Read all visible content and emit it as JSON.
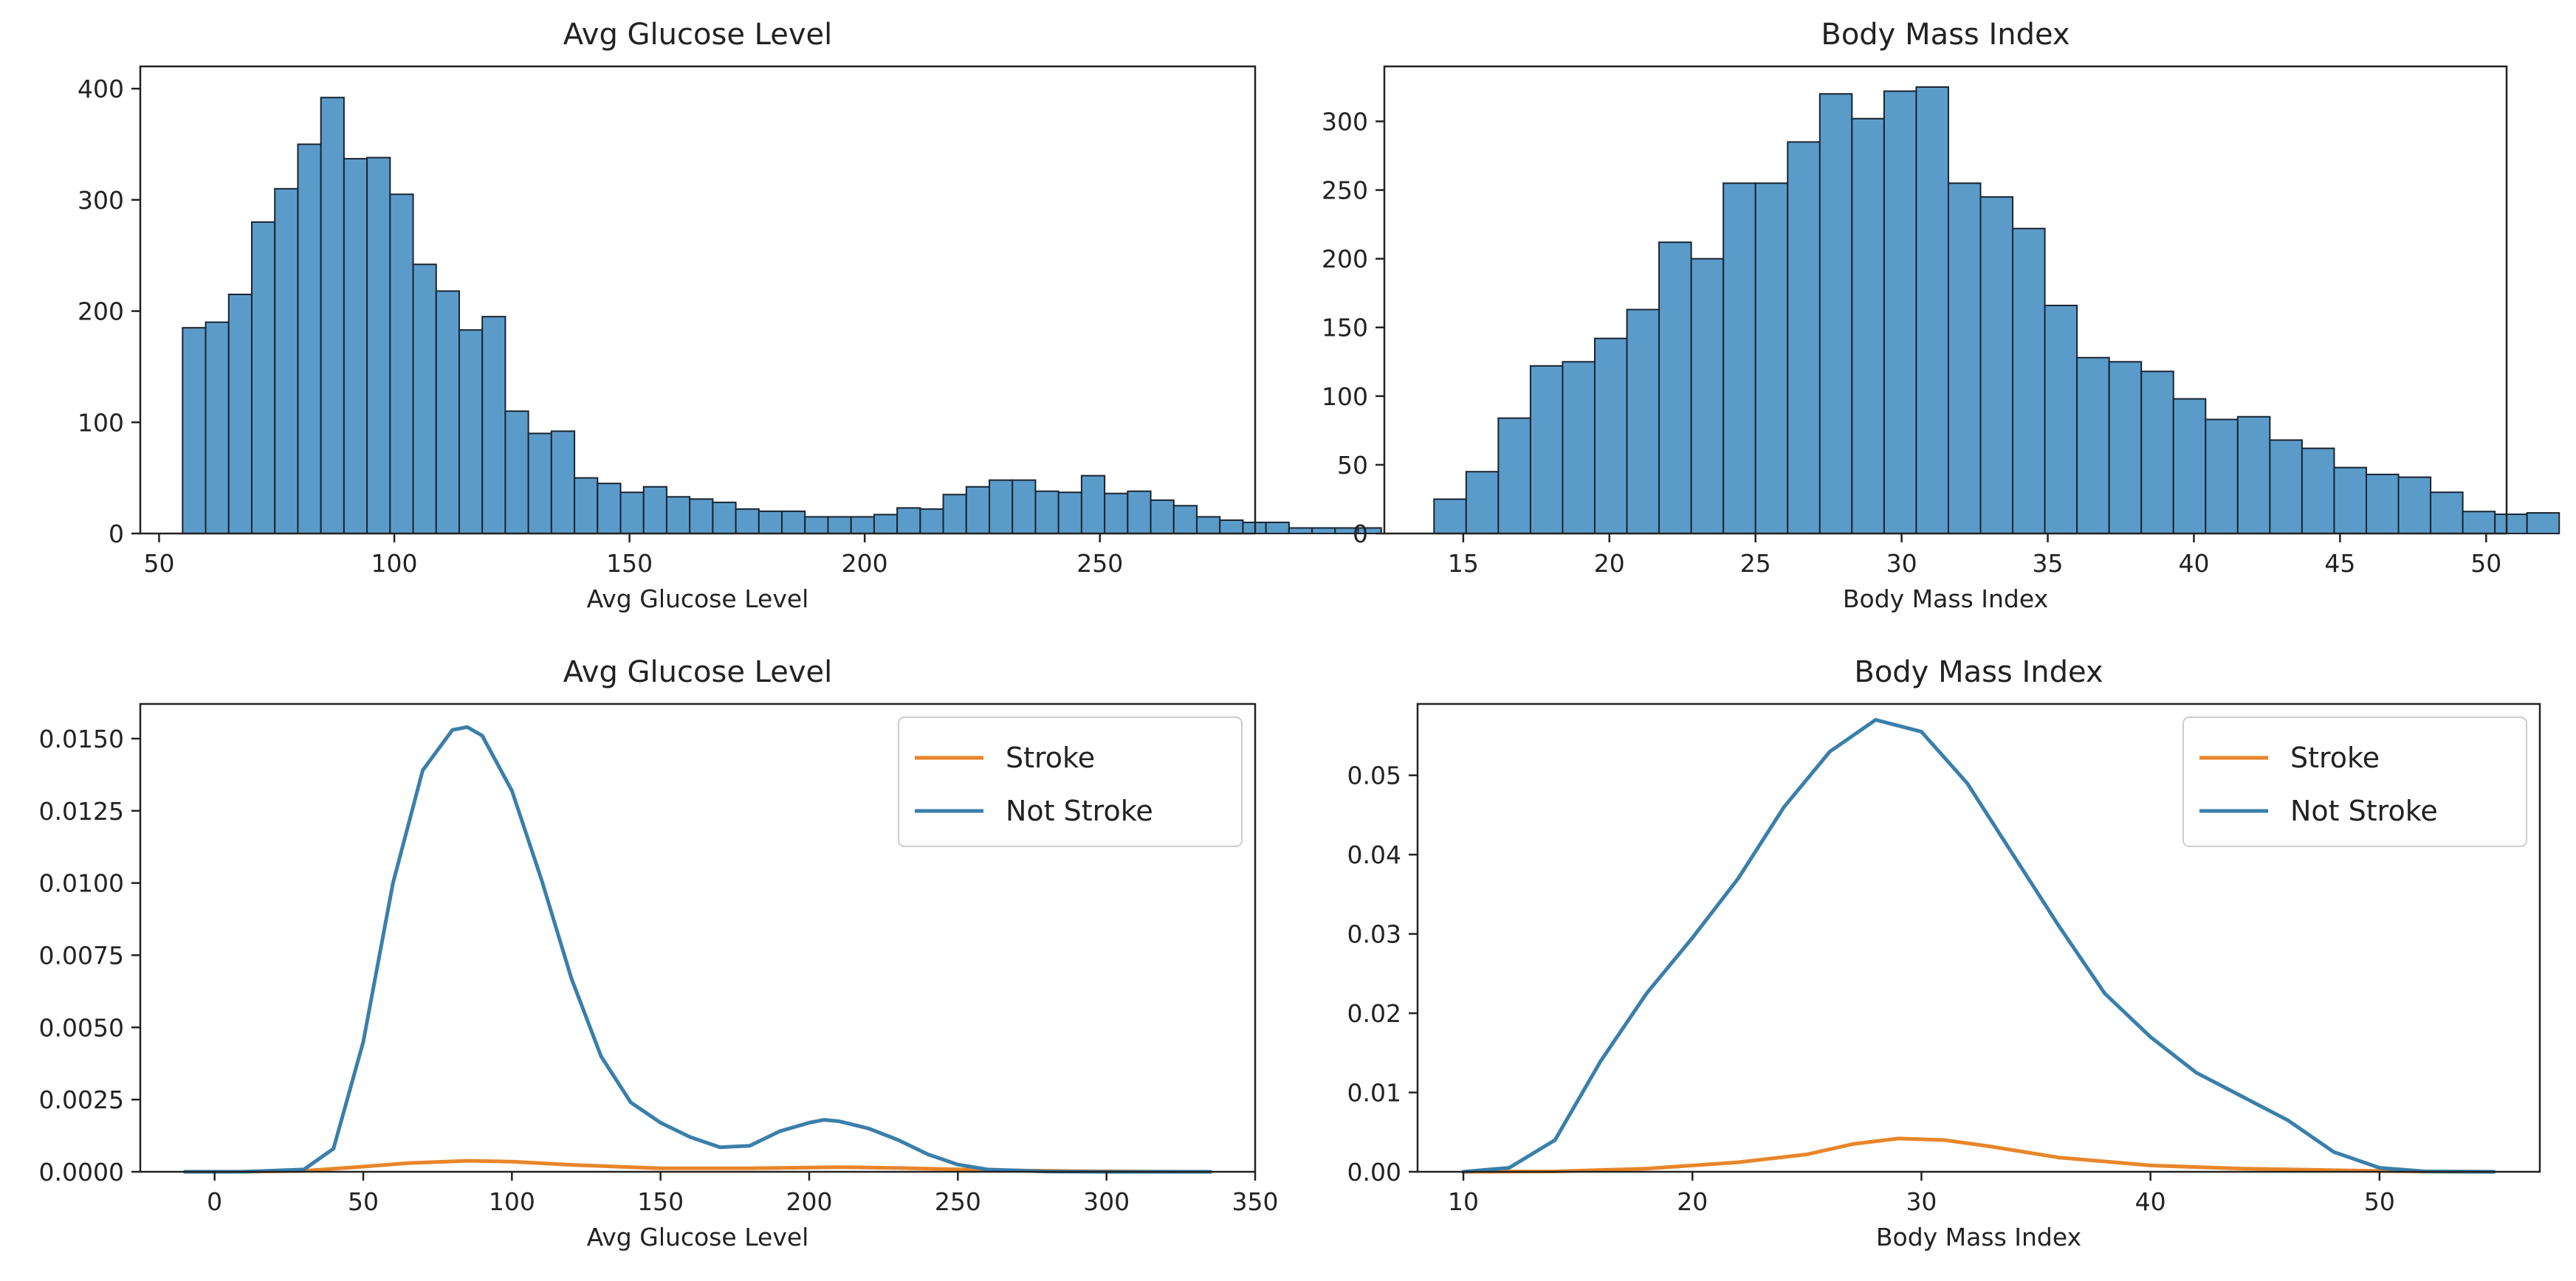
{
  "colors": {
    "bar_fill": "#5b9bc9",
    "bar_edge": "#1a2430",
    "stroke_line": "#e8862a",
    "not_stroke_line": "#3a7fab",
    "axis": "#222222",
    "legend_border": "#cccccc"
  },
  "chart_data": [
    {
      "type": "bar",
      "title": "Avg Glucose Level",
      "xlabel": "Avg Glucose Level",
      "ylabel": "",
      "xlim": [
        46,
        283
      ],
      "ylim": [
        0,
        420
      ],
      "xticks": [
        50,
        100,
        150,
        200,
        250
      ],
      "yticks": [
        0,
        100,
        200,
        300,
        400
      ],
      "bin_start": 55,
      "bin_width": 4.9,
      "values": [
        185,
        190,
        215,
        280,
        310,
        350,
        392,
        337,
        338,
        305,
        242,
        218,
        183,
        195,
        110,
        90,
        92,
        50,
        45,
        37,
        42,
        33,
        31,
        28,
        22,
        20,
        20,
        15,
        15,
        15,
        17,
        23,
        22,
        35,
        42,
        48,
        48,
        38,
        37,
        52,
        36,
        38,
        30,
        25,
        15,
        12,
        10,
        10,
        5,
        5,
        5,
        5
      ]
    },
    {
      "type": "bar",
      "title": "Body Mass Index",
      "xlabel": "Body Mass Index",
      "ylabel": "",
      "xlim": [
        12.3,
        50.7
      ],
      "ylim": [
        0,
        340
      ],
      "xticks": [
        15,
        20,
        25,
        30,
        35,
        40,
        45,
        50
      ],
      "yticks": [
        0,
        50,
        100,
        150,
        200,
        250,
        300
      ],
      "bin_start": 14,
      "bin_width": 1.1,
      "values": [
        25,
        45,
        84,
        122,
        125,
        142,
        163,
        212,
        200,
        255,
        255,
        285,
        320,
        302,
        322,
        325,
        255,
        245,
        222,
        166,
        128,
        125,
        118,
        98,
        83,
        85,
        68,
        62,
        48,
        43,
        41,
        30,
        16,
        14,
        15
      ]
    },
    {
      "type": "line",
      "title": "Avg Glucose Level",
      "xlabel": "Avg Glucose Level",
      "ylabel": "",
      "xlim": [
        -25,
        350
      ],
      "ylim": [
        0,
        0.0162
      ],
      "xticks": [
        0,
        50,
        100,
        150,
        200,
        250,
        300,
        350
      ],
      "yticks": [
        0.0,
        0.0025,
        0.005,
        0.0075,
        0.01,
        0.0125,
        0.015
      ],
      "ytick_labels": [
        "0.0000",
        "0.0025",
        "0.0050",
        "0.0075",
        "0.0100",
        "0.0125",
        "0.0150"
      ],
      "legend": "top-right",
      "series": [
        {
          "name": "Stroke",
          "x": [
            -10,
            10,
            30,
            50,
            65,
            85,
            100,
            120,
            150,
            180,
            210,
            230,
            260,
            290,
            320,
            335
          ],
          "y": [
            0,
            2e-06,
            3e-05,
            0.00018,
            0.0003,
            0.00038,
            0.00035,
            0.00024,
            0.00012,
            0.00012,
            0.00016,
            0.00013,
            6e-05,
            2e-05,
            3e-06,
            0
          ]
        },
        {
          "name": "Not Stroke",
          "x": [
            -10,
            10,
            30,
            40,
            50,
            60,
            70,
            80,
            85,
            90,
            100,
            110,
            120,
            130,
            140,
            150,
            160,
            170,
            180,
            190,
            200,
            205,
            210,
            220,
            230,
            240,
            250,
            260,
            280,
            300,
            335
          ],
          "y": [
            0,
            2e-06,
            8e-05,
            0.0008,
            0.0045,
            0.01,
            0.0139,
            0.0153,
            0.0154,
            0.0151,
            0.0132,
            0.0101,
            0.0067,
            0.004,
            0.0024,
            0.0017,
            0.0012,
            0.00085,
            0.0009,
            0.0014,
            0.0017,
            0.0018,
            0.00175,
            0.0015,
            0.0011,
            0.0006,
            0.00025,
            8e-05,
            1e-05,
            1e-06,
            0
          ]
        }
      ]
    },
    {
      "type": "line",
      "title": "Body Mass Index",
      "xlabel": "Body Mass Index",
      "ylabel": "",
      "xlim": [
        8,
        57
      ],
      "ylim": [
        0,
        0.059
      ],
      "xticks": [
        10,
        20,
        30,
        40,
        50
      ],
      "yticks": [
        0.0,
        0.01,
        0.02,
        0.03,
        0.04,
        0.05
      ],
      "ytick_labels": [
        "0.00",
        "0.01",
        "0.02",
        "0.03",
        "0.04",
        "0.05"
      ],
      "legend": "top-right",
      "series": [
        {
          "name": "Stroke",
          "x": [
            10,
            14,
            18,
            22,
            25,
            27,
            29,
            31,
            33,
            36,
            40,
            44,
            48,
            52,
            55
          ],
          "y": [
            0,
            5e-05,
            0.0004,
            0.0012,
            0.0022,
            0.0035,
            0.0042,
            0.004,
            0.0032,
            0.0018,
            0.0008,
            0.0004,
            0.0002,
            3e-05,
            0
          ]
        },
        {
          "name": "Not Stroke",
          "x": [
            10,
            12,
            14,
            16,
            18,
            20,
            22,
            24,
            26,
            28,
            30,
            32,
            34,
            36,
            38,
            40,
            42,
            44,
            46,
            48,
            50,
            52,
            55
          ],
          "y": [
            0,
            0.0005,
            0.004,
            0.014,
            0.0225,
            0.0295,
            0.037,
            0.046,
            0.053,
            0.057,
            0.0555,
            0.049,
            0.04,
            0.031,
            0.0225,
            0.017,
            0.0125,
            0.0095,
            0.0065,
            0.0025,
            0.0005,
            5e-05,
            0
          ]
        }
      ]
    }
  ]
}
